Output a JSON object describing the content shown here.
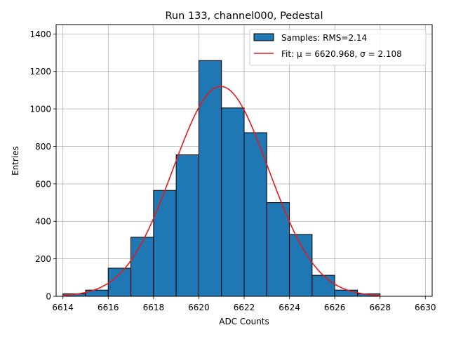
{
  "chart_data": {
    "type": "bar",
    "title": "Run 133, channel000, Pedestal",
    "xlabel": "ADC Counts",
    "ylabel": "Entries",
    "xlim": [
      6613.7,
      6630.3
    ],
    "ylim": [
      0,
      1450
    ],
    "xticks": [
      6614,
      6616,
      6618,
      6620,
      6622,
      6624,
      6626,
      6628,
      6630
    ],
    "yticks": [
      0,
      200,
      400,
      600,
      800,
      1000,
      1200,
      1400
    ],
    "grid": true,
    "legend_position": "top-right",
    "bins": [
      {
        "x0": 6614,
        "x1": 6615,
        "count": 13
      },
      {
        "x0": 6615,
        "x1": 6616,
        "count": 33
      },
      {
        "x0": 6616,
        "x1": 6617,
        "count": 150
      },
      {
        "x0": 6617,
        "x1": 6618,
        "count": 315
      },
      {
        "x0": 6618,
        "x1": 6619,
        "count": 565
      },
      {
        "x0": 6619,
        "x1": 6620,
        "count": 755
      },
      {
        "x0": 6620,
        "x1": 6621,
        "count": 1258
      },
      {
        "x0": 6621,
        "x1": 6622,
        "count": 1005
      },
      {
        "x0": 6622,
        "x1": 6623,
        "count": 873
      },
      {
        "x0": 6623,
        "x1": 6624,
        "count": 500
      },
      {
        "x0": 6624,
        "x1": 6625,
        "count": 330
      },
      {
        "x0": 6625,
        "x1": 6626,
        "count": 112
      },
      {
        "x0": 6626,
        "x1": 6627,
        "count": 33
      },
      {
        "x0": 6627,
        "x1": 6628,
        "count": 13
      }
    ],
    "fit": {
      "mu": 6620.968,
      "sigma": 2.108,
      "amplitude": 1120,
      "x_range": [
        6614,
        6628
      ]
    },
    "series": [
      {
        "name": "Samples: RMS=2.14",
        "kind": "histogram",
        "color": "#1f77b4"
      },
      {
        "name_prefix": "Fit: ",
        "mu_label": "μ = 6620.968",
        "sep": ", ",
        "sigma_label": "σ = 2.108",
        "kind": "line",
        "color": "#e41a1c"
      }
    ]
  }
}
